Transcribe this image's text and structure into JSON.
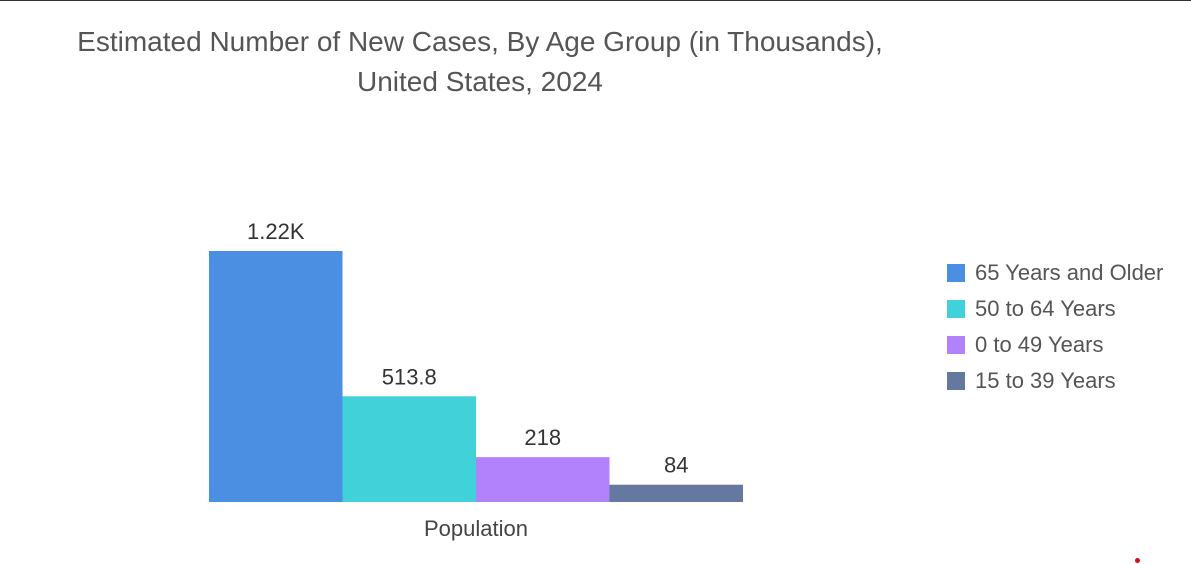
{
  "chart_data": {
    "type": "bar",
    "title_lines": [
      "Estimated Number of New Cases, By Age Group (in Thousands),",
      "United States, 2024"
    ],
    "categories": [
      "Population"
    ],
    "series": [
      {
        "name": "65 Years and Older",
        "values": [
          1220
        ],
        "label": "1.22K",
        "color": "#4a8fe2"
      },
      {
        "name": "50 to 64 Years",
        "values": [
          513.8
        ],
        "label": "513.8",
        "color": "#40d1d9"
      },
      {
        "name": "0 to 49 Years",
        "values": [
          218
        ],
        "label": "218",
        "color": "#b281fc"
      },
      {
        "name": "15 to 39 Years",
        "values": [
          84
        ],
        "label": "84",
        "color": "#6478a0"
      }
    ],
    "xlabel": "Population",
    "ylabel": "",
    "ylim": [
      0,
      1220
    ],
    "grid": false,
    "legend_position": "right"
  }
}
